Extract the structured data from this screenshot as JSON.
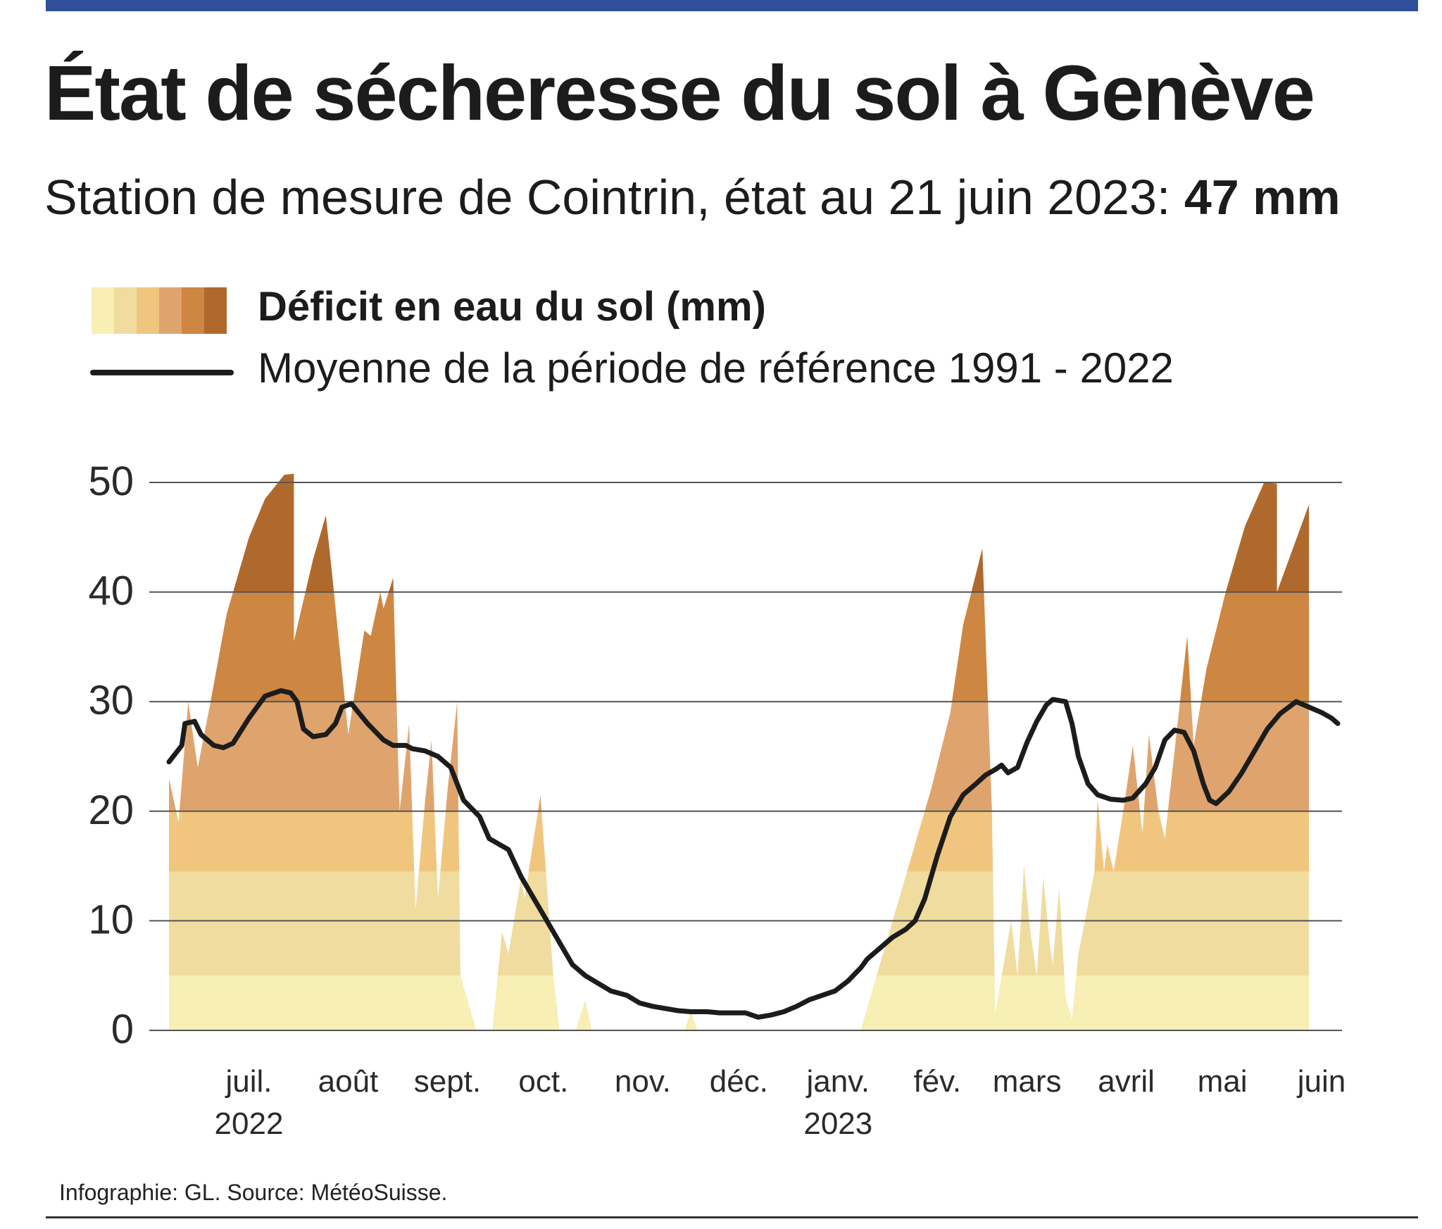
{
  "header": {
    "title": "État de sécheresse du sol à Genève",
    "subtitle_prefix": "Station de mesure de Cointrin, état au 21 juin 2023: ",
    "subtitle_value": "47 mm"
  },
  "legend": {
    "deficit_label": "Déficit en eau du sol (mm)",
    "reference_label": "Moyenne de la période de référence 1991 - 2022",
    "band_colors": [
      "#f7efb3",
      "#f0dc9e",
      "#f0c67f",
      "#dfa46e",
      "#ce8643",
      "#b0692d"
    ]
  },
  "footer": {
    "credit": "Infographie: GL. Source: MétéoSuisse."
  },
  "colors": {
    "topbar": "#2f4f9a",
    "line": "#1c1c1c",
    "grid": "#555555"
  },
  "chart_data": {
    "type": "area",
    "title": "État de sécheresse du sol à Genève",
    "ylabel": "Déficit en eau du sol (mm)",
    "ylim": [
      0,
      50
    ],
    "yticks": [
      0,
      10,
      20,
      30,
      40,
      50
    ],
    "xlim": [
      0,
      365
    ],
    "band_thresholds": [
      0,
      5,
      14.5,
      20,
      30,
      40,
      60
    ],
    "month_ticks": [
      {
        "label": "juil.",
        "year": "2022",
        "t": 10
      },
      {
        "label": "août",
        "year": "",
        "t": 41
      },
      {
        "label": "sept.",
        "year": "",
        "t": 72
      },
      {
        "label": "oct.",
        "year": "",
        "t": 102
      },
      {
        "label": "nov.",
        "year": "",
        "t": 133
      },
      {
        "label": "déc.",
        "year": "",
        "t": 163
      },
      {
        "label": "janv.",
        "year": "2023",
        "t": 194
      },
      {
        "label": "fév.",
        "year": "",
        "t": 225
      },
      {
        "label": "mars",
        "year": "",
        "t": 253
      },
      {
        "label": "avril",
        "year": "",
        "t": 284
      },
      {
        "label": "mai",
        "year": "",
        "t": 314
      },
      {
        "label": "juin",
        "year": "",
        "t": 345
      }
    ],
    "series": [
      {
        "name": "Déficit en eau du sol (mm)",
        "kind": "area",
        "points": [
          [
            0,
            0
          ],
          [
            0,
            23
          ],
          [
            3,
            19
          ],
          [
            6,
            30
          ],
          [
            9,
            24
          ],
          [
            13,
            30
          ],
          [
            18,
            38
          ],
          [
            20,
            40
          ],
          [
            25,
            45
          ],
          [
            30,
            48.5
          ],
          [
            36,
            50.7
          ],
          [
            39,
            50.8
          ],
          [
            39,
            35.5
          ],
          [
            45,
            43
          ],
          [
            49,
            47
          ],
          [
            51,
            41.5
          ],
          [
            56,
            27
          ],
          [
            61,
            36.5
          ],
          [
            63,
            36
          ],
          [
            66,
            40
          ],
          [
            67,
            38.5
          ],
          [
            70,
            41.3
          ],
          [
            72,
            20
          ],
          [
            75,
            28
          ],
          [
            77,
            11
          ],
          [
            80,
            21
          ],
          [
            82,
            26.5
          ],
          [
            84,
            12
          ],
          [
            87,
            22
          ],
          [
            90,
            30
          ],
          [
            91,
            5
          ],
          [
            96,
            0
          ],
          [
            101,
            0
          ],
          [
            104,
            9
          ],
          [
            106,
            7
          ],
          [
            110,
            14
          ],
          [
            111,
            12
          ],
          [
            116,
            21.5
          ],
          [
            120,
            5
          ],
          [
            122,
            0
          ],
          [
            127,
            0
          ],
          [
            130,
            2.8
          ],
          [
            132,
            0
          ],
          [
            161,
            0
          ],
          [
            163,
            1.7
          ],
          [
            165,
            0
          ],
          [
            216,
            0
          ],
          [
            220,
            4
          ],
          [
            226,
            10
          ],
          [
            232,
            16
          ],
          [
            238,
            22
          ],
          [
            244,
            29
          ],
          [
            248,
            37
          ],
          [
            254,
            44
          ],
          [
            257,
            20
          ],
          [
            258,
            1.5
          ],
          [
            263,
            10
          ],
          [
            265,
            5
          ],
          [
            267,
            15
          ],
          [
            268,
            12
          ],
          [
            269,
            9
          ],
          [
            271,
            5
          ],
          [
            273,
            14
          ],
          [
            275,
            8
          ],
          [
            276,
            6
          ],
          [
            278,
            13
          ],
          [
            280,
            3
          ],
          [
            282,
            1
          ],
          [
            284,
            7
          ],
          [
            289,
            14.5
          ],
          [
            290,
            21
          ],
          [
            292,
            14.5
          ],
          [
            293,
            17
          ],
          [
            295,
            14.5
          ],
          [
            298,
            20
          ],
          [
            301,
            26
          ],
          [
            304,
            18
          ],
          [
            306,
            27
          ],
          [
            309,
            20
          ],
          [
            311,
            17.5
          ],
          [
            318,
            36
          ],
          [
            320,
            26
          ],
          [
            324,
            33
          ],
          [
            330,
            40
          ],
          [
            336,
            46
          ],
          [
            342,
            50
          ],
          [
            346,
            49.9
          ],
          [
            346,
            40
          ],
          [
            356,
            48
          ],
          [
            356,
            0
          ]
        ]
      },
      {
        "name": "Moyenne de la période de référence 1991 - 2022",
        "kind": "line",
        "points": [
          [
            0,
            24.5
          ],
          [
            4,
            26
          ],
          [
            5,
            28
          ],
          [
            8,
            28.2
          ],
          [
            10,
            27
          ],
          [
            14,
            26
          ],
          [
            17,
            25.8
          ],
          [
            20,
            26.2
          ],
          [
            25,
            28.5
          ],
          [
            30,
            30.5
          ],
          [
            35,
            31
          ],
          [
            38,
            30.8
          ],
          [
            40,
            30
          ],
          [
            42,
            27.5
          ],
          [
            45,
            26.8
          ],
          [
            49,
            27
          ],
          [
            52,
            28
          ],
          [
            54,
            29.5
          ],
          [
            57,
            29.8
          ],
          [
            62,
            28
          ],
          [
            67,
            26.5
          ],
          [
            70,
            26
          ],
          [
            74,
            26
          ],
          [
            76,
            25.7
          ],
          [
            80,
            25.5
          ],
          [
            84,
            25
          ],
          [
            88,
            24
          ],
          [
            92,
            21
          ],
          [
            97,
            19.5
          ],
          [
            100,
            17.5
          ],
          [
            106,
            16.5
          ],
          [
            110,
            14
          ],
          [
            114,
            12
          ],
          [
            118,
            10
          ],
          [
            122,
            8
          ],
          [
            126,
            6
          ],
          [
            130,
            5
          ],
          [
            134,
            4.3
          ],
          [
            138,
            3.6
          ],
          [
            143,
            3.2
          ],
          [
            147,
            2.5
          ],
          [
            151,
            2.2
          ],
          [
            155,
            2
          ],
          [
            159,
            1.8
          ],
          [
            163,
            1.7
          ],
          [
            168,
            1.7
          ],
          [
            172,
            1.6
          ],
          [
            176,
            1.6
          ],
          [
            180,
            1.6
          ],
          [
            184,
            1.2
          ],
          [
            188,
            1.4
          ],
          [
            192,
            1.7
          ],
          [
            196,
            2.2
          ],
          [
            200,
            2.8
          ],
          [
            204,
            3.2
          ],
          [
            208,
            3.6
          ],
          [
            212,
            4.5
          ],
          [
            216,
            5.7
          ],
          [
            218,
            6.5
          ],
          [
            222,
            7.5
          ],
          [
            226,
            8.5
          ],
          [
            230,
            9.2
          ],
          [
            233,
            10
          ],
          [
            236,
            12
          ],
          [
            240,
            16
          ],
          [
            244,
            19.5
          ],
          [
            248,
            21.5
          ],
          [
            252,
            22.5
          ],
          [
            255,
            23.3
          ],
          [
            258,
            23.8
          ],
          [
            260,
            24.2
          ],
          [
            262,
            23.5
          ],
          [
            265,
            24
          ],
          [
            268,
            26.3
          ],
          [
            271,
            28.2
          ],
          [
            274,
            29.7
          ],
          [
            276,
            30.2
          ],
          [
            280,
            30
          ],
          [
            282,
            28
          ],
          [
            284,
            25
          ],
          [
            287,
            22.5
          ],
          [
            290,
            21.5
          ],
          [
            294,
            21.1
          ],
          [
            298,
            21
          ],
          [
            301,
            21.2
          ],
          [
            305,
            22.5
          ],
          [
            308,
            24
          ],
          [
            311,
            26.5
          ],
          [
            314,
            27.4
          ],
          [
            317,
            27.2
          ],
          [
            320,
            25.5
          ],
          [
            323,
            22.5
          ],
          [
            325,
            21
          ],
          [
            327,
            20.7
          ],
          [
            331,
            21.8
          ],
          [
            335,
            23.5
          ],
          [
            339,
            25.5
          ],
          [
            343,
            27.5
          ],
          [
            347,
            28.9
          ],
          [
            352,
            30
          ],
          [
            356,
            29.5
          ],
          [
            360,
            29
          ],
          [
            363,
            28.5
          ],
          [
            365,
            28
          ]
        ]
      }
    ]
  }
}
